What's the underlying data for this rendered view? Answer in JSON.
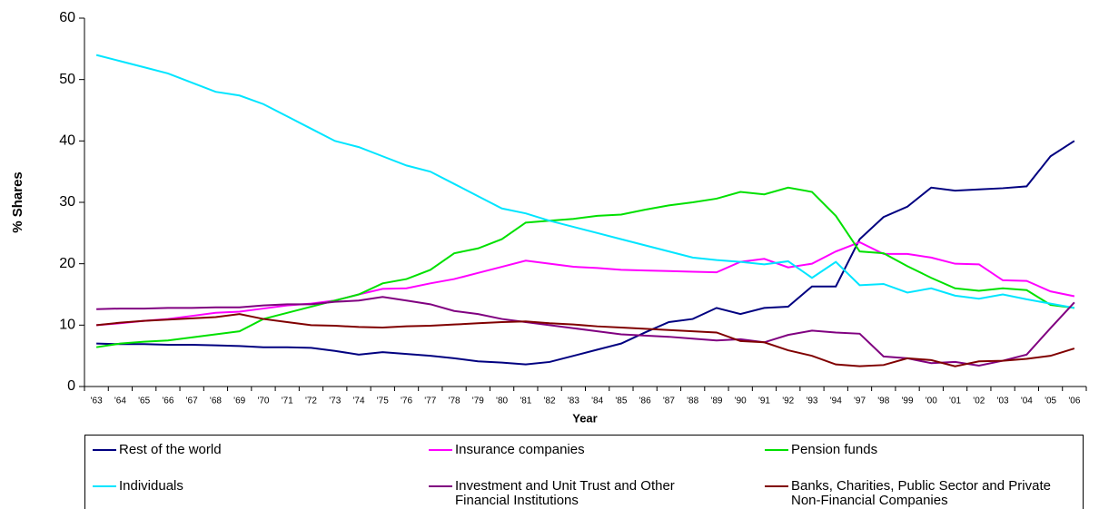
{
  "chart_data": {
    "type": "line",
    "x_label": "Year",
    "y_label": "% Shares",
    "categories": [
      "'63",
      "'64",
      "'65",
      "'66",
      "'67",
      "'68",
      "'69",
      "'70",
      "'71",
      "'72",
      "'73",
      "'74",
      "'75",
      "'76",
      "'77",
      "'78",
      "'79",
      "'80",
      "'81",
      "'82",
      "'83",
      "'84",
      "'85",
      "'86",
      "'87",
      "'88",
      "'89",
      "'90",
      "'91",
      "'92",
      "'93",
      "'94",
      "'97",
      "'98",
      "'99",
      "'00",
      "'01",
      "'02",
      "'03",
      "'04",
      "'05",
      "'06"
    ],
    "ylim": [
      0,
      60
    ],
    "yticks": [
      0,
      10,
      20,
      30,
      40,
      50,
      60
    ],
    "grid": false,
    "legend": "bottom",
    "series": [
      {
        "name": "Rest of the world",
        "color": "#000080",
        "values": [
          7,
          6.9,
          6.9,
          6.8,
          6.8,
          6.7,
          6.6,
          6.4,
          6.4,
          6.3,
          5.8,
          5.2,
          5.6,
          5.3,
          5,
          4.6,
          4.1,
          3.9,
          3.6,
          4,
          5,
          6,
          7,
          8.8,
          10.5,
          11,
          12.8,
          11.8,
          12.8,
          13,
          16.3,
          16.3,
          24,
          27.6,
          29.3,
          32.4,
          31.9,
          32.1,
          32.3,
          32.6,
          37.5,
          40
        ]
      },
      {
        "name": "Insurance companies",
        "color": "#ff00ff",
        "values": [
          10,
          10.3,
          10.7,
          11,
          11.5,
          12,
          12.2,
          12.7,
          13.2,
          13.5,
          14,
          15,
          15.9,
          16,
          16.8,
          17.5,
          18.5,
          19.5,
          20.5,
          20,
          19.5,
          19.3,
          19,
          18.9,
          18.8,
          18.7,
          18.6,
          20.3,
          20.8,
          19.4,
          20,
          22,
          23.5,
          21.6,
          21.6,
          21,
          20,
          19.9,
          17.3,
          17.2,
          15.5,
          14.7
        ]
      },
      {
        "name": "Pension funds",
        "color": "#00e000",
        "values": [
          6.4,
          7,
          7.3,
          7.5,
          8,
          8.5,
          9,
          11,
          12,
          13,
          14,
          15,
          16.8,
          17.5,
          19,
          21.7,
          22.5,
          24,
          26.7,
          27,
          27.3,
          27.8,
          28,
          28.8,
          29.5,
          30,
          30.6,
          31.7,
          31.3,
          32.4,
          31.7,
          27.8,
          22,
          21.7,
          19.6,
          17.7,
          16,
          15.6,
          16,
          15.7,
          13.3,
          12.8
        ]
      },
      {
        "name": "Individuals",
        "color": "#00e5ff",
        "values": [
          54,
          53,
          52,
          51,
          49.5,
          48,
          47.4,
          46,
          44,
          42,
          40,
          39,
          37.5,
          36,
          35,
          33,
          31,
          29,
          28.2,
          27,
          26,
          25,
          24,
          23,
          22,
          21,
          20.6,
          20.3,
          19.9,
          20.4,
          17.7,
          20.3,
          16.5,
          16.7,
          15.3,
          16,
          14.8,
          14.3,
          15,
          14.2,
          13.5,
          12.8
        ]
      },
      {
        "name": "Investment and Unit Trust and Other Financial Institutions",
        "color": "#800080",
        "values": [
          12.6,
          12.7,
          12.7,
          12.8,
          12.8,
          12.9,
          12.9,
          13.2,
          13.4,
          13.4,
          13.8,
          14,
          14.6,
          14,
          13.4,
          12.3,
          11.8,
          11,
          10.5,
          10,
          9.5,
          9,
          8.5,
          8.3,
          8.1,
          7.8,
          7.5,
          7.7,
          7.2,
          8.4,
          9.1,
          8.8,
          8.6,
          4.9,
          4.6,
          3.8,
          4,
          3.4,
          4.2,
          5.2,
          9.5,
          13.7
        ]
      },
      {
        "name": "Banks, Charities, Public Sector and Private Non-Financial Companies",
        "color": "#800000",
        "values": [
          10,
          10.4,
          10.7,
          10.9,
          11.1,
          11.3,
          11.8,
          11,
          10.5,
          10,
          9.9,
          9.7,
          9.6,
          9.8,
          9.9,
          10.1,
          10.3,
          10.5,
          10.6,
          10.3,
          10.1,
          9.8,
          9.6,
          9.4,
          9.2,
          9,
          8.8,
          7.4,
          7.2,
          5.9,
          5,
          3.6,
          3.3,
          3.5,
          4.6,
          4.3,
          3.3,
          4.1,
          4.2,
          4.5,
          5,
          6.2
        ]
      }
    ]
  }
}
